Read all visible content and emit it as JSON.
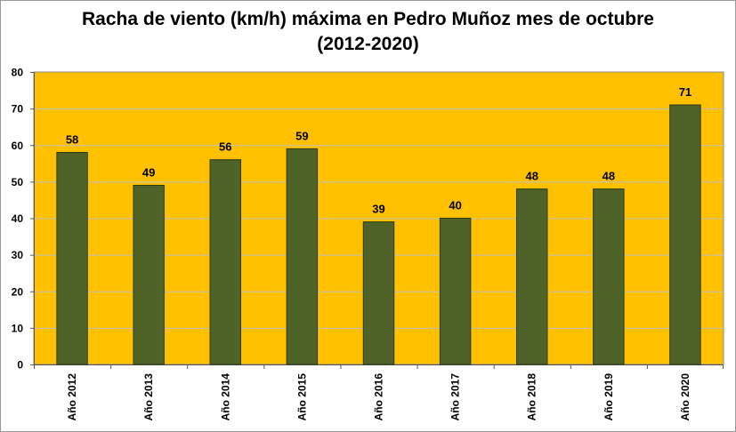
{
  "chart_data": {
    "type": "bar",
    "title_line1": "Racha de viento (km/h) máxima  en Pedro Muñoz mes de octubre",
    "title_line2": "(2012-2020)",
    "categories": [
      "Año 2012",
      "Año 2013",
      "Año 2014",
      "Año 2015",
      "Año 2016",
      "Año 2017",
      "Año 2018",
      "Año 2019",
      "Año 2020"
    ],
    "values": [
      58,
      49,
      56,
      59,
      39,
      40,
      48,
      48,
      71
    ],
    "xlabel": "",
    "ylabel": "",
    "ylim": [
      0,
      80
    ],
    "yticks": [
      0,
      10,
      20,
      30,
      40,
      50,
      60,
      70,
      80
    ],
    "grid": true,
    "legend": "none",
    "colors": {
      "bar": "#4f6228",
      "bar_border": "#2b3a14",
      "plot_background": "#ffc000",
      "gridline": "#bfbfbf"
    }
  }
}
